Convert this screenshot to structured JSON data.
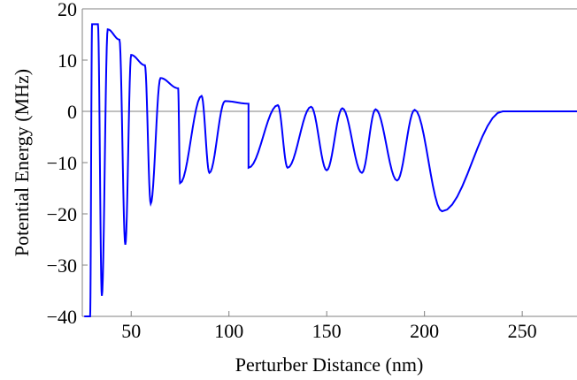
{
  "chart_data": {
    "type": "line",
    "title": "",
    "xlabel": "Perturber Distance (nm)",
    "ylabel": "Potential Energy (MHz)",
    "xlim": [
      25,
      278
    ],
    "ylim": [
      -40,
      20
    ],
    "xticks": [
      50,
      100,
      150,
      200,
      250
    ],
    "yticks": [
      20,
      10,
      0,
      -10,
      -20,
      -30,
      -40
    ],
    "grid": false,
    "legend": "none",
    "colors": {
      "series": "#0000ff",
      "zero_line": "#808080",
      "frame": "#808080"
    },
    "description_values": {
      "oscillation_maxima_nm_mhz": [
        [
          30,
          17
        ],
        [
          33,
          17
        ],
        [
          38,
          16
        ],
        [
          44,
          14
        ],
        [
          50,
          11
        ],
        [
          57,
          9
        ],
        [
          65,
          6.5
        ],
        [
          74,
          4.5
        ],
        [
          86,
          3
        ],
        [
          98,
          2
        ],
        [
          110,
          1.5
        ],
        [
          125,
          1.2
        ],
        [
          142,
          0.9
        ],
        [
          158,
          0.6
        ],
        [
          175,
          0.4
        ],
        [
          195,
          0.3
        ]
      ],
      "oscillation_minima_nm_mhz": [
        [
          26,
          -40
        ],
        [
          29,
          -40
        ],
        [
          35,
          -36
        ],
        [
          47,
          -26
        ],
        [
          60,
          -18
        ],
        [
          75,
          -14
        ],
        [
          90,
          -12
        ],
        [
          110,
          -11
        ],
        [
          130,
          -11
        ],
        [
          150,
          -11.5
        ],
        [
          168,
          -12
        ],
        [
          186,
          -13.5
        ],
        [
          209,
          -19.5
        ]
      ],
      "flat_after_nm": 240,
      "flat_value_mhz": 0
    },
    "series": [
      {
        "points": []
      }
    ]
  }
}
